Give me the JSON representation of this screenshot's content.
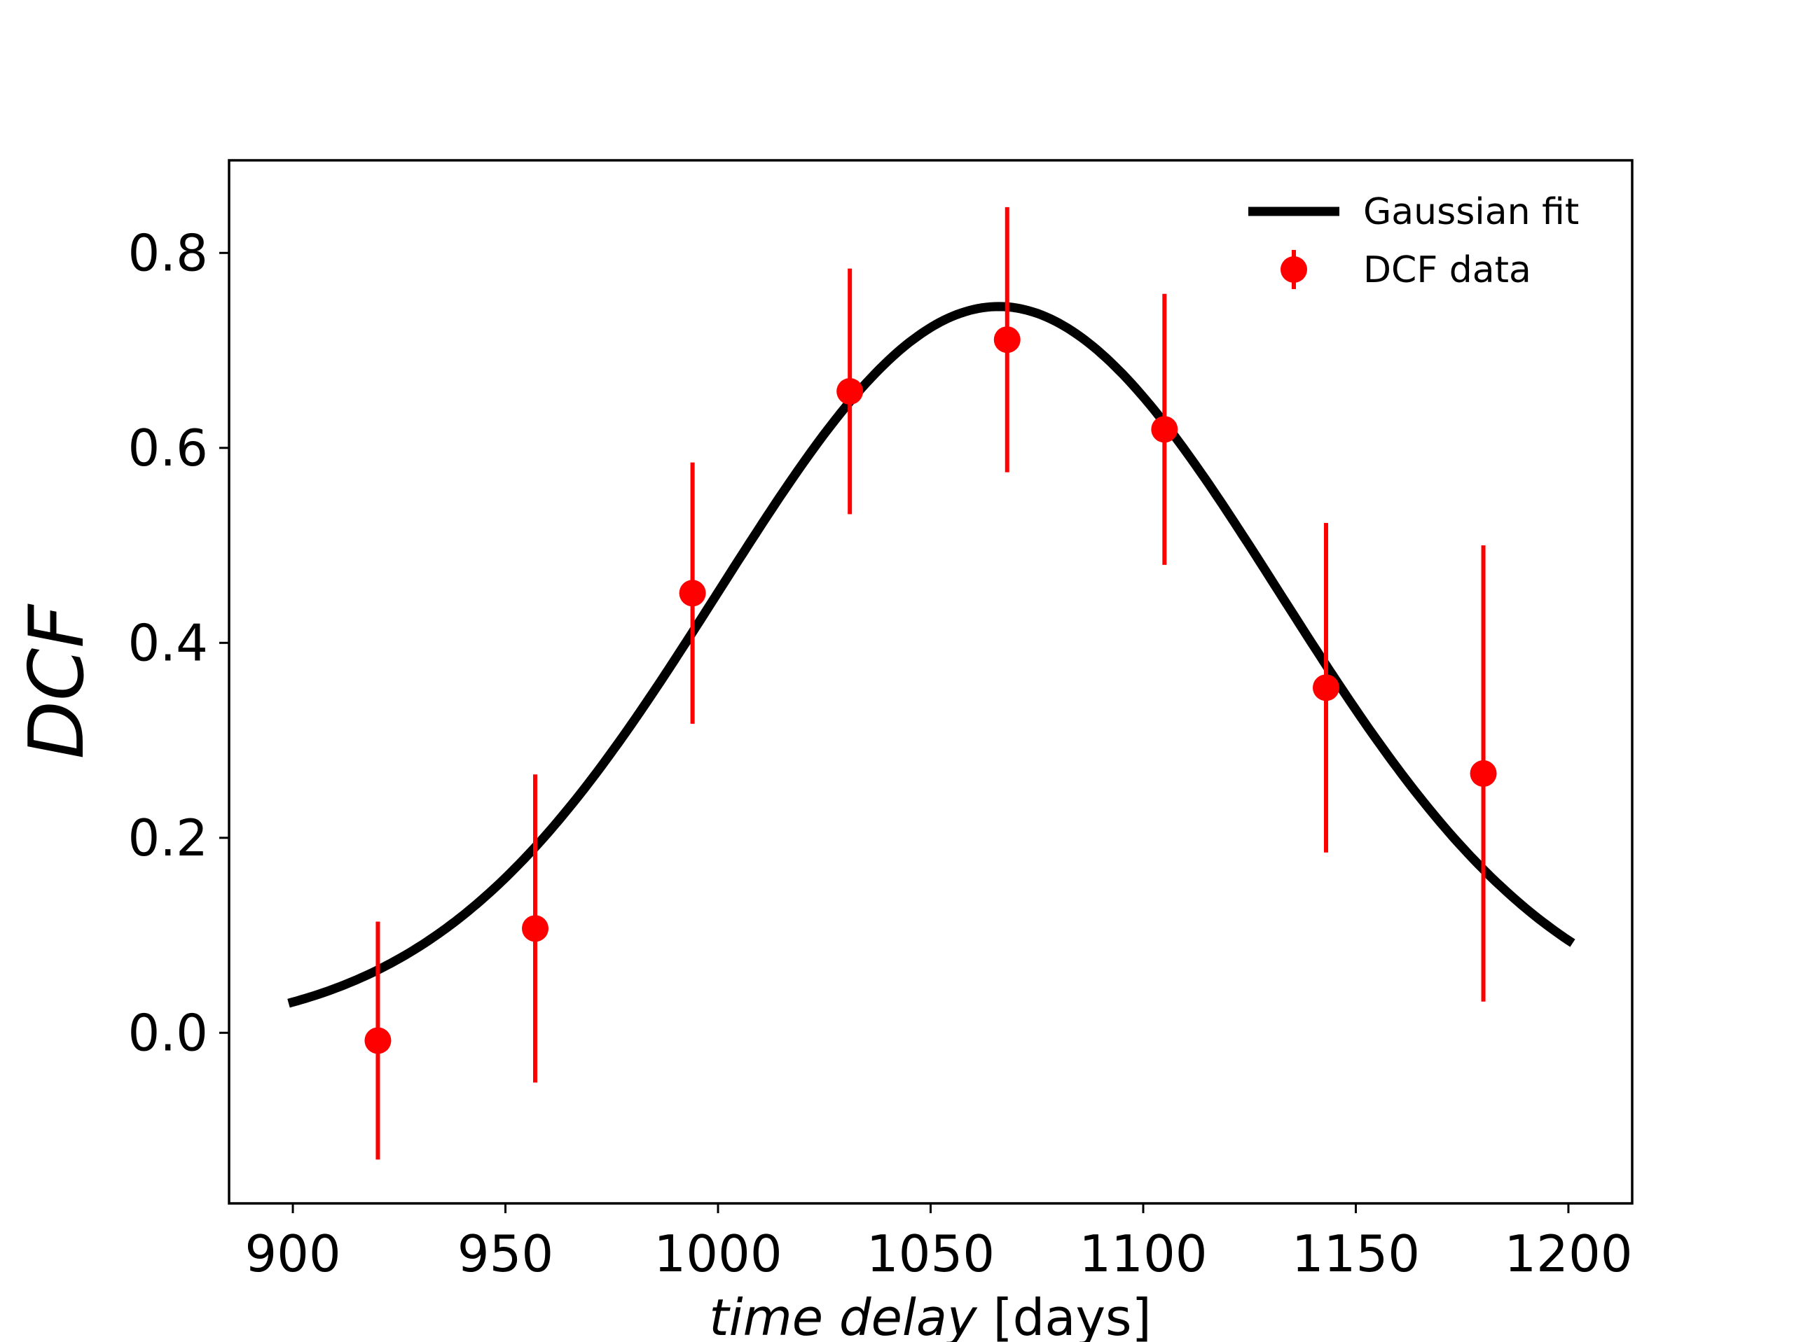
{
  "chart_data": {
    "type": "scatter",
    "title": "",
    "xlabel_italic": "time delay",
    "xlabel_unit": "[days]",
    "ylabel": "DCF",
    "xlim": [
      885,
      1215
    ],
    "ylim": [
      -0.175,
      0.895
    ],
    "xticks": [
      900,
      950,
      1000,
      1050,
      1100,
      1150,
      1200
    ],
    "xtick_labels": [
      "900",
      "950",
      "1000",
      "1050",
      "1100",
      "1150",
      "1200"
    ],
    "yticks": [
      0.0,
      0.2,
      0.4,
      0.6,
      0.8
    ],
    "ytick_labels": [
      "0.0",
      "0.2",
      "0.4",
      "0.6",
      "0.8"
    ],
    "grid": false,
    "legend": {
      "position": "top-right",
      "entries": [
        "Gaussian fit",
        "DCF data"
      ]
    },
    "series": [
      {
        "name": "Gaussian fit",
        "kind": "line",
        "color": "#000000",
        "model": "gaussian",
        "amplitude": 0.745,
        "center": 1066,
        "sigma": 66,
        "x_start": 899,
        "x_end": 1201
      },
      {
        "name": "DCF data",
        "kind": "errorbar",
        "color": "#ff0000",
        "x": [
          920,
          957,
          994,
          1031,
          1068,
          1105,
          1143,
          1180
        ],
        "y": [
          -0.008,
          0.107,
          0.451,
          0.658,
          0.711,
          0.619,
          0.354,
          0.266
        ],
        "yerr": [
          0.122,
          0.158,
          0.134,
          0.126,
          0.136,
          0.139,
          0.169,
          0.234
        ]
      }
    ]
  }
}
